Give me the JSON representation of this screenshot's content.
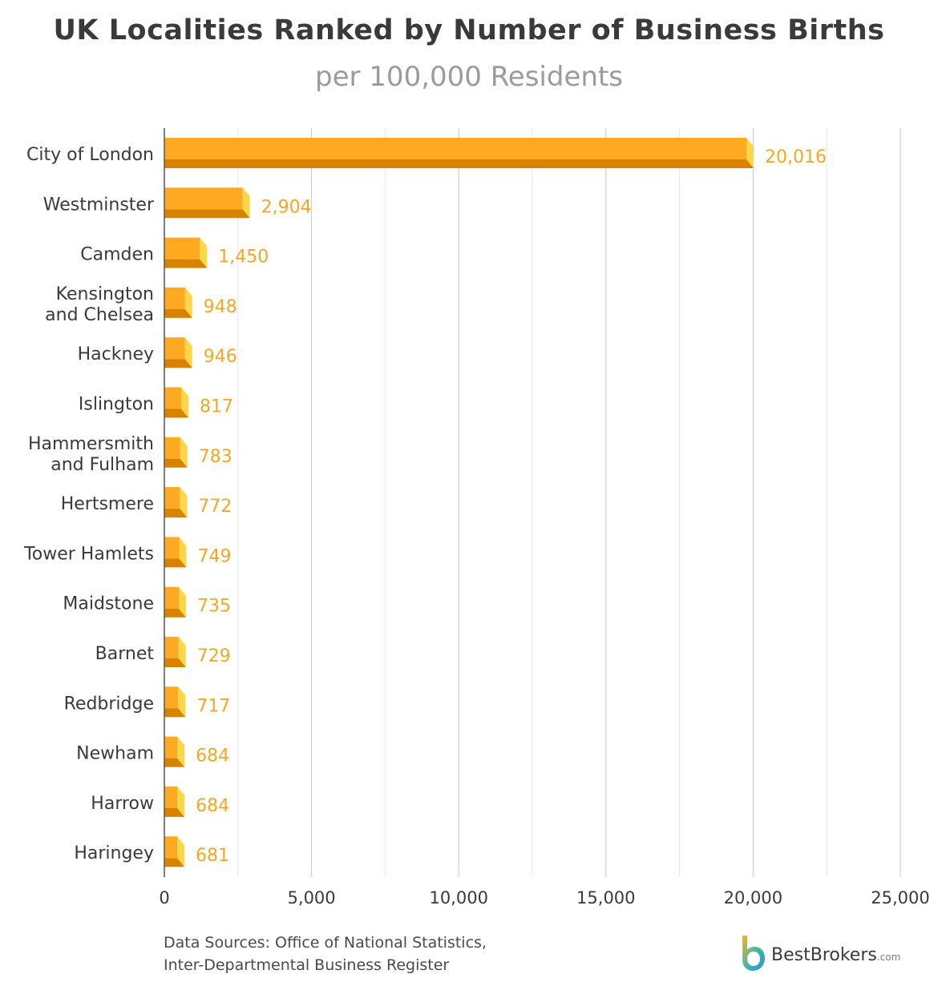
{
  "title": "UK Localities Ranked by Number of Business Births",
  "subtitle": "per 100,000 Residents",
  "source": {
    "line1": "Data Sources: Office of National Statistics,",
    "line2": "Inter-Departmental Business Register"
  },
  "brand": {
    "name": "BestBrokers",
    "suffix": ".com"
  },
  "colors": {
    "bar_face": "#FDA922",
    "bar_bottom": "#D98200",
    "bar_side": "#FFD54A",
    "value_label": "#F5A623",
    "grid": "#d6d6d6",
    "axis": "#555555"
  },
  "chart_data": {
    "type": "bar",
    "orientation": "horizontal",
    "title": "UK Localities Ranked by Number of Business Births",
    "subtitle": "per 100,000 Residents",
    "categories": [
      [
        "City of London"
      ],
      [
        "Westminster"
      ],
      [
        "Camden"
      ],
      [
        "Kensington",
        "and Chelsea"
      ],
      [
        "Hackney"
      ],
      [
        "Islington"
      ],
      [
        "Hammersmith",
        "and Fulham"
      ],
      [
        "Hertsmere"
      ],
      [
        "Tower Hamlets"
      ],
      [
        "Maidstone"
      ],
      [
        "Barnet"
      ],
      [
        "Redbridge"
      ],
      [
        "Newham"
      ],
      [
        "Harrow"
      ],
      [
        "Haringey"
      ]
    ],
    "values": [
      20016,
      2904,
      1450,
      948,
      946,
      817,
      783,
      772,
      749,
      735,
      729,
      717,
      684,
      684,
      681
    ],
    "value_labels": [
      "20,016",
      "2,904",
      "1,450",
      "948",
      "946",
      "817",
      "783",
      "772",
      "749",
      "735",
      "729",
      "717",
      "684",
      "684",
      "681"
    ],
    "xlim": [
      0,
      25000
    ],
    "xticks": [
      0,
      5000,
      10000,
      15000,
      20000,
      25000
    ],
    "xtick_labels": [
      "0",
      "5,000",
      "10,000",
      "15,000",
      "20,000",
      "25,000"
    ],
    "minor_grid_step": 2500,
    "grid": true
  }
}
